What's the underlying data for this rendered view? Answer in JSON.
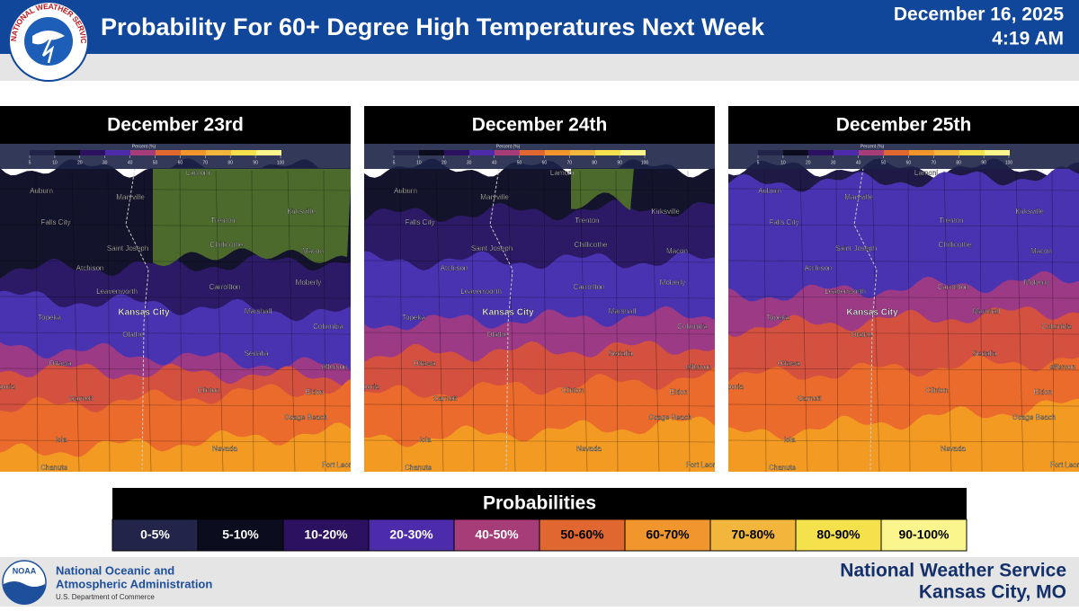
{
  "header": {
    "title": "Probability For 60+ Degree High Temperatures Next Week",
    "date": "December 16, 2025",
    "time": "4:19 AM",
    "logo_text": "NATIONAL WEATHER SERVICE"
  },
  "maps": [
    {
      "title": "December 23rd"
    },
    {
      "title": "December 24th"
    },
    {
      "title": "December 25th"
    }
  ],
  "map_scale": {
    "label": "Percent (%)",
    "ticks": [
      5,
      10,
      20,
      30,
      40,
      50,
      60,
      70,
      80,
      90,
      100
    ]
  },
  "cities": [
    "Lamoni",
    "Auburn",
    "Maryville",
    "Falls City",
    "Trenton",
    "Kirksville",
    "Saint Joseph",
    "Chillicothe",
    "Macon",
    "Atchison",
    "Carrollton",
    "Moberly",
    "Leavenworth",
    "Topeka",
    "Kansas City",
    "Marshall",
    "Columbia",
    "Olathe",
    "Sedalia",
    "Ottawa",
    "efferson",
    "poria",
    "Clinton",
    "Eldon",
    "Garnett",
    "Osage Beach",
    "Iola",
    "Nevada",
    "Chanute",
    "Fort Leon"
  ],
  "legend": {
    "title": "Probabilities",
    "bins": [
      {
        "label": "0-5%",
        "color": "#22244a"
      },
      {
        "label": "5-10%",
        "color": "#0c0c1f"
      },
      {
        "label": "10-20%",
        "color": "#2b1160"
      },
      {
        "label": "20-30%",
        "color": "#4c2cab"
      },
      {
        "label": "40-50%",
        "color": "#a63d79"
      },
      {
        "label": "50-60%",
        "color": "#e0672f"
      },
      {
        "label": "60-70%",
        "color": "#f0962c"
      },
      {
        "label": "70-80%",
        "color": "#f1b63b"
      },
      {
        "label": "80-90%",
        "color": "#f4e14b"
      },
      {
        "label": "90-100%",
        "color": "#faf68d"
      }
    ]
  },
  "footer": {
    "noaa_logo": "NOAA",
    "noaa_line1": "National Oceanic and",
    "noaa_line2": "Atmospheric Administration",
    "noaa_line3": "U.S. Department of Commerce",
    "nws_line1": "National Weather Service",
    "nws_line2": "Kansas City, MO"
  }
}
